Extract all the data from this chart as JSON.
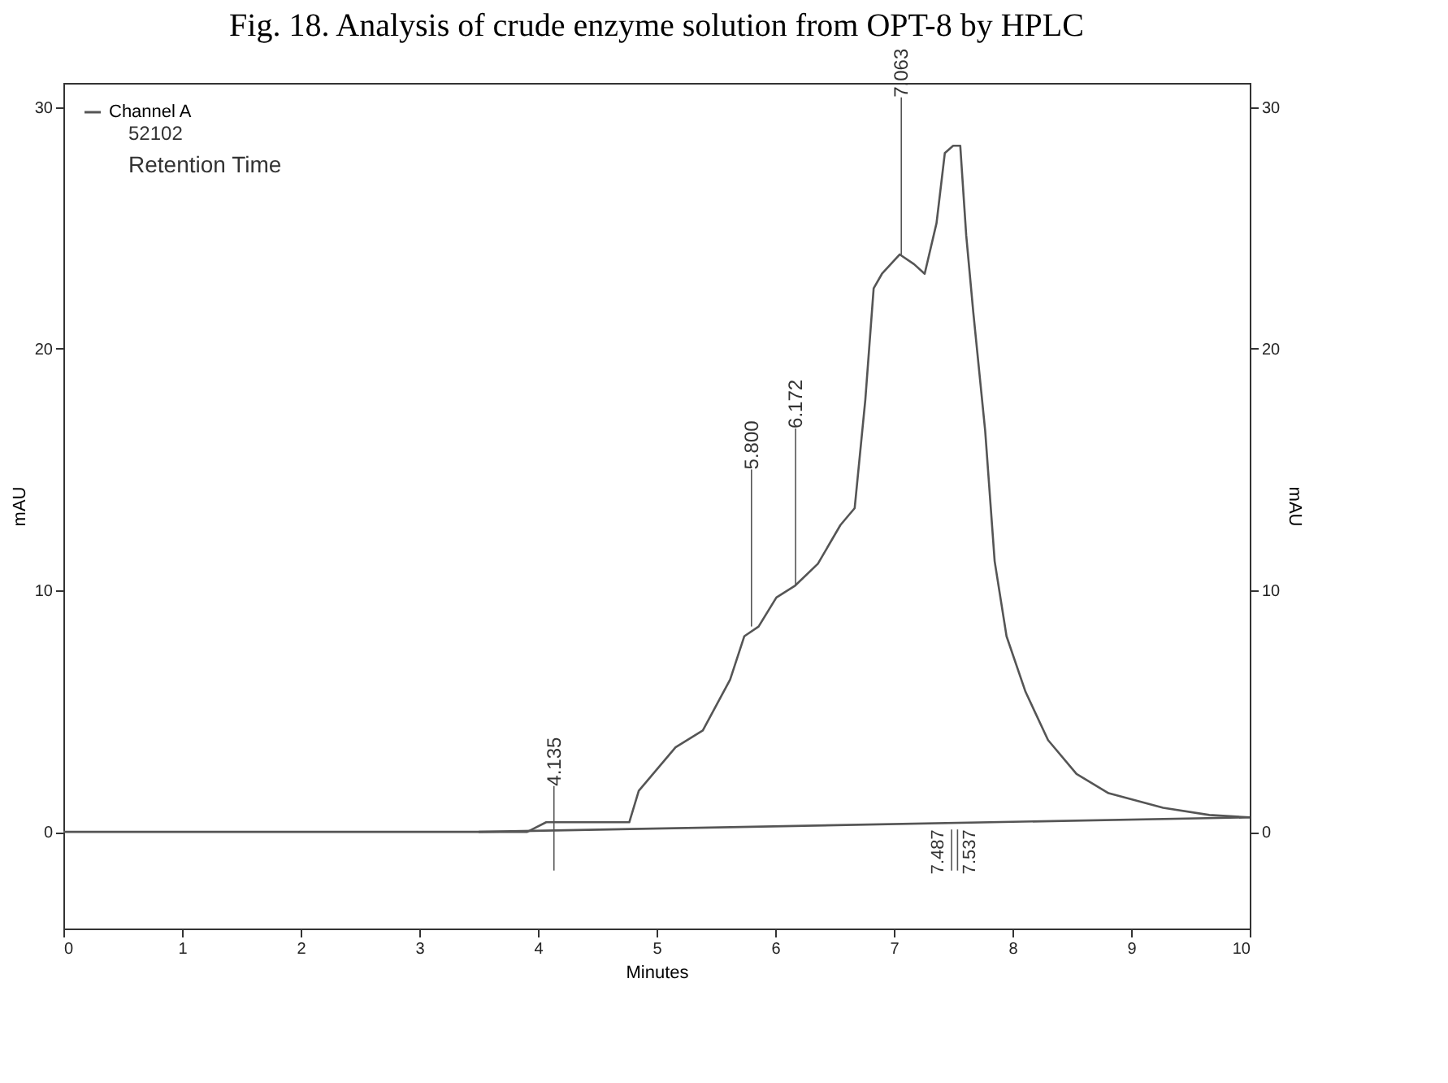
{
  "chart_data": {
    "type": "line",
    "title": "Fig. 18. Analysis of crude enzyme solution from OPT-8 by HPLC",
    "xlabel": "Minutes",
    "ylabel": "mAU",
    "y2label": "mAU",
    "xlim": [
      0,
      10
    ],
    "xticks": [
      0,
      1,
      2,
      3,
      4,
      5,
      6,
      7,
      8,
      9,
      10
    ],
    "ylim": [
      -4,
      31
    ],
    "yticks": [
      0,
      10,
      20,
      30
    ],
    "y2lim": [
      -4,
      31
    ],
    "y2ticks": [
      0,
      10,
      20,
      30
    ],
    "legend": "top left",
    "grid": false,
    "marker": "none",
    "line_style": "solid",
    "series": [
      {
        "name": "Channel A",
        "color": "#555555",
        "x": [
          0,
          3.5,
          3.91,
          4.07,
          4.77,
          4.85,
          5.16,
          5.39,
          5.62,
          5.74,
          5.86,
          6.01,
          6.17,
          6.36,
          6.55,
          6.67,
          6.76,
          6.83,
          6.9,
          7.05,
          7.17,
          7.26,
          7.36,
          7.43,
          7.5,
          7.56,
          7.61,
          7.67,
          7.77,
          7.85,
          7.95,
          8.11,
          8.3,
          8.54,
          8.81,
          9.27,
          9.66,
          10
        ],
        "values": [
          0,
          0,
          0,
          0.4,
          0.4,
          1.7,
          3.5,
          4.2,
          6.3,
          8.1,
          8.5,
          9.7,
          10.2,
          11.1,
          12.7,
          13.4,
          17.9,
          22.5,
          23.1,
          23.9,
          23.5,
          23.1,
          25.2,
          28.1,
          28.4,
          28.4,
          24.7,
          21.5,
          16.6,
          11.2,
          8.1,
          5.8,
          3.8,
          2.4,
          1.6,
          1.0,
          0.7,
          0.6
        ]
      },
      {
        "color": "#555555",
        "x": [
          3.5,
          10
        ],
        "values": [
          0,
          0.6
        ]
      }
    ],
    "annotations": [
      "52102",
      "Retention Time",
      {
        "text": "4.135",
        "x": 4.135,
        "y": 0.4
      },
      {
        "text": "5.800",
        "x": 5.8,
        "y": 8.5
      },
      {
        "text": "6.172",
        "x": 6.172,
        "y": 10.2
      },
      {
        "text": "7.063",
        "x": 7.063,
        "y": 23.9
      },
      {
        "text": "7.487",
        "x": 7.487,
        "y": 0.4
      },
      {
        "text": "7.537",
        "x": 7.537,
        "y": 0.4
      }
    ]
  }
}
